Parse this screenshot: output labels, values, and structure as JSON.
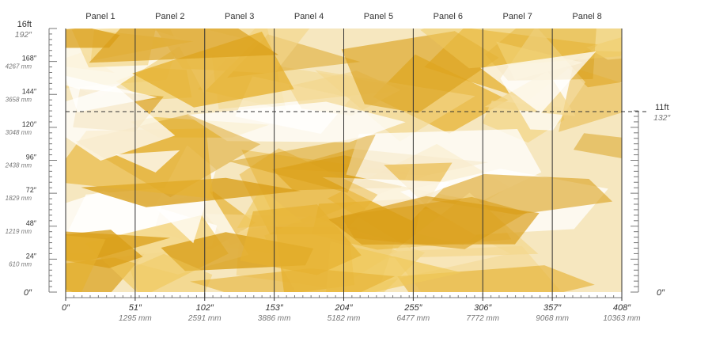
{
  "panels": [
    "Panel 1",
    "Panel 2",
    "Panel 3",
    "Panel 4",
    "Panel 5",
    "Panel 6",
    "Panel 7",
    "Panel 8"
  ],
  "left_scale": {
    "top_label": "16ft",
    "top_inches": "192″",
    "ticks": [
      {
        "inches": 168,
        "label": "168″",
        "sub": "4267 mm"
      },
      {
        "inches": 144,
        "label": "144″",
        "sub": "3658 mm"
      },
      {
        "inches": 120,
        "label": "120″",
        "sub": "3048 mm"
      },
      {
        "inches": 96,
        "label": "96″",
        "sub": "2438 mm"
      },
      {
        "inches": 72,
        "label": "72″",
        "sub": "1829 mm"
      },
      {
        "inches": 48,
        "label": "48″",
        "sub": "1219 mm"
      },
      {
        "inches": 24,
        "label": "24″",
        "sub": "610 mm"
      }
    ],
    "zero_label": "0″"
  },
  "right_scale": {
    "mark_inches": 132,
    "mark_label": "11ft",
    "mark_sub": "132″",
    "zero_label": "0″"
  },
  "bottom_scale": {
    "ticks": [
      {
        "inches": 0,
        "label": "0″",
        "sub": ""
      },
      {
        "inches": 51,
        "label": "51″",
        "sub": "1295 mm"
      },
      {
        "inches": 102,
        "label": "102″",
        "sub": "2591 mm"
      },
      {
        "inches": 153,
        "label": "153″",
        "sub": "3886 mm"
      },
      {
        "inches": 204,
        "label": "204″",
        "sub": "5182 mm"
      },
      {
        "inches": 255,
        "label": "255″",
        "sub": "6477 mm"
      },
      {
        "inches": 306,
        "label": "306″",
        "sub": "7772 mm"
      },
      {
        "inches": 357,
        "label": "357″",
        "sub": "9068 mm"
      },
      {
        "inches": 408,
        "label": "408″",
        "sub": "10363 mm"
      }
    ]
  },
  "colors": {
    "base": "#f6e7bf",
    "shard_light": "#efc85a",
    "shard_mid": "#e6b130",
    "shard_dark": "#d99e17",
    "line": "#333333",
    "sub_text": "#777777"
  }
}
